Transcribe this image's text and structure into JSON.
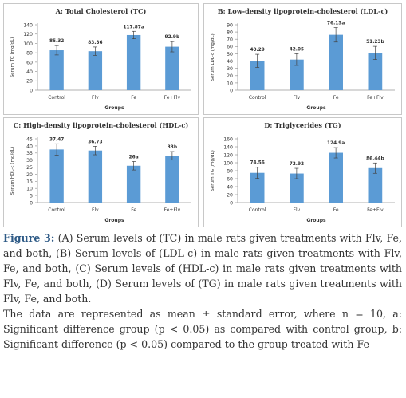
{
  "chart_data": [
    {
      "type": "bar",
      "title": "A: Total Cholesterol (TC)",
      "xlabel": "Groups",
      "ylabel": "Serum TC (mg/dL)",
      "ylim": [
        0,
        140
      ],
      "yticks": [
        0,
        20,
        40,
        60,
        80,
        100,
        120,
        140
      ],
      "categories": [
        "Control",
        "Flv",
        "Fe",
        "Fe+Flv"
      ],
      "values": [
        85.32,
        83.36,
        117.87,
        92.9
      ],
      "errors": [
        10,
        9,
        8,
        11
      ],
      "data_labels": [
        "85.32",
        "83.36",
        "117.87a",
        "92.9b"
      ],
      "bar_color": "#5b9bd5",
      "grid": false
    },
    {
      "type": "bar",
      "title": "B: Low-density lipoprotein-cholesterol (LDL-c)",
      "xlabel": "Groups",
      "ylabel": "Serum LDL-c (mg/dL)",
      "ylim": [
        0,
        90
      ],
      "yticks": [
        0,
        10,
        20,
        30,
        40,
        50,
        60,
        70,
        80,
        90
      ],
      "categories": [
        "Control",
        "Flv",
        "Fe",
        "Fe+Flv"
      ],
      "values": [
        40.29,
        42.05,
        76.13,
        51.23
      ],
      "errors": [
        9,
        8,
        10,
        9
      ],
      "data_labels": [
        "40.29",
        "42.05",
        "76.13a",
        "51.23b"
      ],
      "bar_color": "#5b9bd5",
      "grid": false
    },
    {
      "type": "bar",
      "title": "C: High-density lipoprotein-cholesterol (HDL-c)",
      "xlabel": "Groups",
      "ylabel": "Serum HDL-c (mg/dL)",
      "ylim": [
        0,
        45
      ],
      "yticks": [
        0,
        5,
        10,
        15,
        20,
        25,
        30,
        35,
        40,
        45
      ],
      "categories": [
        "Control",
        "Flv",
        "Fe",
        "Fe+Flv"
      ],
      "values": [
        37.47,
        36.73,
        26,
        33
      ],
      "errors": [
        4,
        3,
        3,
        3
      ],
      "data_labels": [
        "37.47",
        "36.73",
        "26a",
        "33b"
      ],
      "bar_color": "#5b9bd5",
      "grid": false
    },
    {
      "type": "bar",
      "title": "D: Triglycerides (TG)",
      "xlabel": "Groups",
      "ylabel": "Serum TG (mg/dL)",
      "ylim": [
        0,
        160
      ],
      "yticks": [
        0,
        20,
        40,
        60,
        80,
        100,
        120,
        140,
        160
      ],
      "categories": [
        "Control",
        "Flv",
        "Fe",
        "Fe+Flv"
      ],
      "values": [
        74.56,
        72.92,
        124.9,
        86.44
      ],
      "errors": [
        14,
        13,
        13,
        13
      ],
      "data_labels": [
        "74.56",
        "72.92",
        "124.9a",
        "86.44b"
      ],
      "bar_color": "#5b9bd5",
      "grid": false
    }
  ],
  "caption": {
    "label": "Figure 3:",
    "text": " (A) Serum levels of (TC) in male rats given treatments with Flv, Fe, and both, (B) Serum levels of (LDL-c) in male rats given treatments with Flv, Fe, and both, (C) Serum levels of (HDL-c) in male rats given treatments with Flv, Fe, and both, (D) Serum levels of (TG) in male rats given treatments with Flv, Fe, and both.",
    "note": "The data are represented as mean ± standard error, where n = 10, a: Significant difference group (p < 0.05) as compared with control group, b: Significant difference (p < 0.05) compared to the group treated with Fe"
  }
}
